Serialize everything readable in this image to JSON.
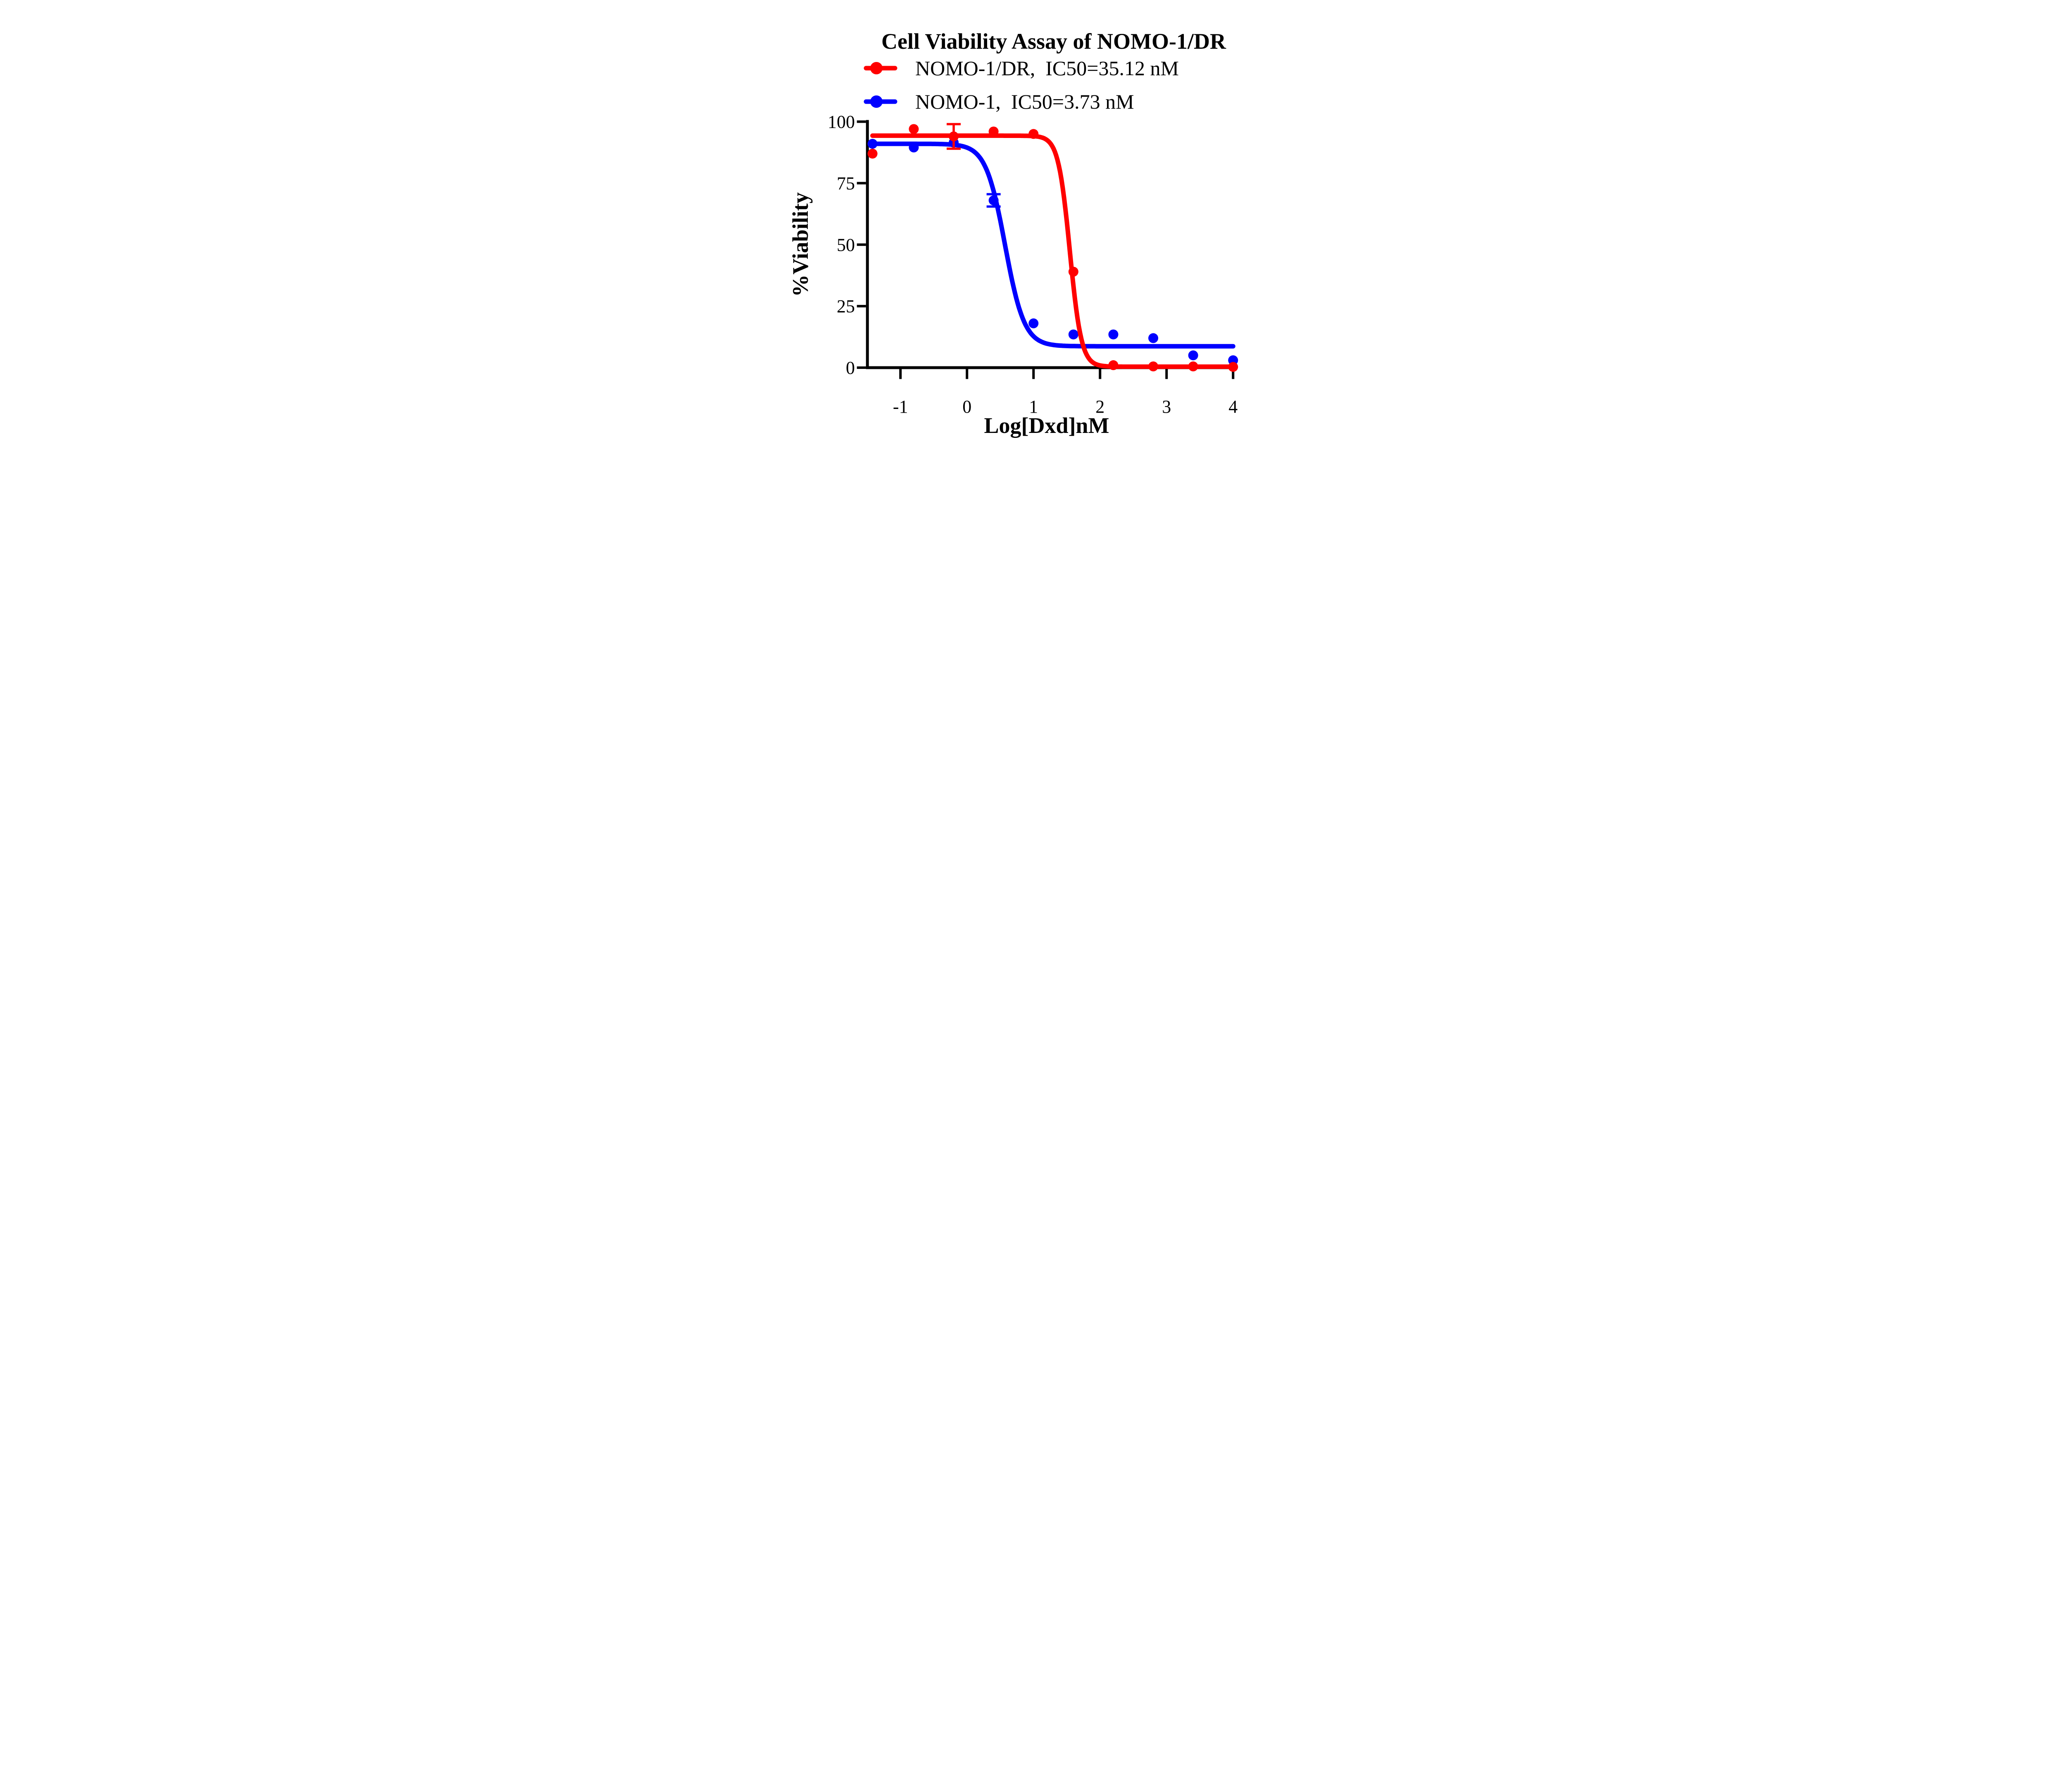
{
  "chart_data": {
    "type": "scatter",
    "title": "Cell Viability Assay of NOMO-1/DR",
    "xlabel": "Log[Dxd]nM",
    "ylabel": "%Viability",
    "xlim": [
      -1.5,
      4
    ],
    "ylim": [
      0,
      100
    ],
    "x_ticks": [
      -1,
      0,
      1,
      2,
      3,
      4
    ],
    "y_ticks": [
      0,
      25,
      50,
      75,
      100
    ],
    "grid": false,
    "axis_color": "#000000",
    "legend_position": "top-left",
    "series": [
      {
        "name": "NOMO-1/DR",
        "legend_label": "NOMO-1/DR,  IC50=35.12 nM",
        "ic50_nM": 35.12,
        "color": "#FF0000",
        "points": [
          {
            "x": -1.42,
            "y": 87
          },
          {
            "x": -0.8,
            "y": 97
          },
          {
            "x": -0.2,
            "y": 94,
            "err": 5
          },
          {
            "x": 0.4,
            "y": 96
          },
          {
            "x": 1.0,
            "y": 95
          },
          {
            "x": 1.6,
            "y": 39
          },
          {
            "x": 2.2,
            "y": 1
          },
          {
            "x": 2.8,
            "y": 0.5
          },
          {
            "x": 3.4,
            "y": 0.5
          },
          {
            "x": 4.0,
            "y": 0.3
          }
        ],
        "fit": {
          "model": "4PL",
          "top": 94.3,
          "bottom": 0.4,
          "log_ic50": 1.546,
          "hill_slope": 5,
          "x_start": -1.42,
          "x_end": 4
        }
      },
      {
        "name": "NOMO-1",
        "legend_label": "NOMO-1,  IC50=3.73 nM",
        "ic50_nM": 3.73,
        "color": "#0000FF",
        "points": [
          {
            "x": -1.42,
            "y": 91
          },
          {
            "x": -0.8,
            "y": 89.5
          },
          {
            "x": -0.2,
            "y": 91.5
          },
          {
            "x": 0.4,
            "y": 68,
            "err": 2.5
          },
          {
            "x": 1.0,
            "y": 18
          },
          {
            "x": 1.6,
            "y": 13.5
          },
          {
            "x": 2.2,
            "y": 13.5
          },
          {
            "x": 2.8,
            "y": 12
          },
          {
            "x": 3.4,
            "y": 5
          },
          {
            "x": 4.0,
            "y": 3
          }
        ],
        "fit": {
          "model": "4PL",
          "top": 91,
          "bottom": 8.7,
          "log_ic50": 0.572,
          "hill_slope": 3,
          "x_start": -1.42,
          "x_end": 4
        }
      }
    ]
  }
}
